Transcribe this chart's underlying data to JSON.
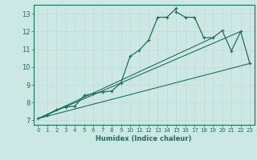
{
  "title": "",
  "xlabel": "Humidex (Indice chaleur)",
  "bg_color": "#cce8e4",
  "line_color": "#1e6e5e",
  "grid_color": "#c8dbd8",
  "xlim": [
    -0.5,
    23.5
  ],
  "ylim": [
    6.75,
    13.5
  ],
  "xticks": [
    0,
    1,
    2,
    3,
    4,
    5,
    6,
    7,
    8,
    9,
    10,
    11,
    12,
    13,
    14,
    15,
    16,
    17,
    18,
    19,
    20,
    21,
    22,
    23
  ],
  "yticks": [
    7,
    8,
    9,
    10,
    11,
    12,
    13
  ],
  "curve1_x": [
    0,
    1,
    2,
    3,
    4,
    5,
    6,
    7,
    8,
    9,
    10,
    11,
    12,
    13,
    14,
    15,
    15,
    16,
    17,
    18,
    19,
    20,
    21,
    22,
    23
  ],
  "curve1_y": [
    7.1,
    7.3,
    7.6,
    7.75,
    7.8,
    8.4,
    8.5,
    8.6,
    8.65,
    9.1,
    10.6,
    10.95,
    11.5,
    12.8,
    12.8,
    13.3,
    13.1,
    12.8,
    12.8,
    11.65,
    11.65,
    12.05,
    10.9,
    12.0,
    10.2
  ],
  "line1_x": [
    0,
    23
  ],
  "line1_y": [
    7.1,
    10.2
  ],
  "line2_x": [
    0,
    22
  ],
  "line2_y": [
    7.1,
    12.0
  ],
  "line3_x": [
    0,
    19
  ],
  "line3_y": [
    7.1,
    11.65
  ]
}
